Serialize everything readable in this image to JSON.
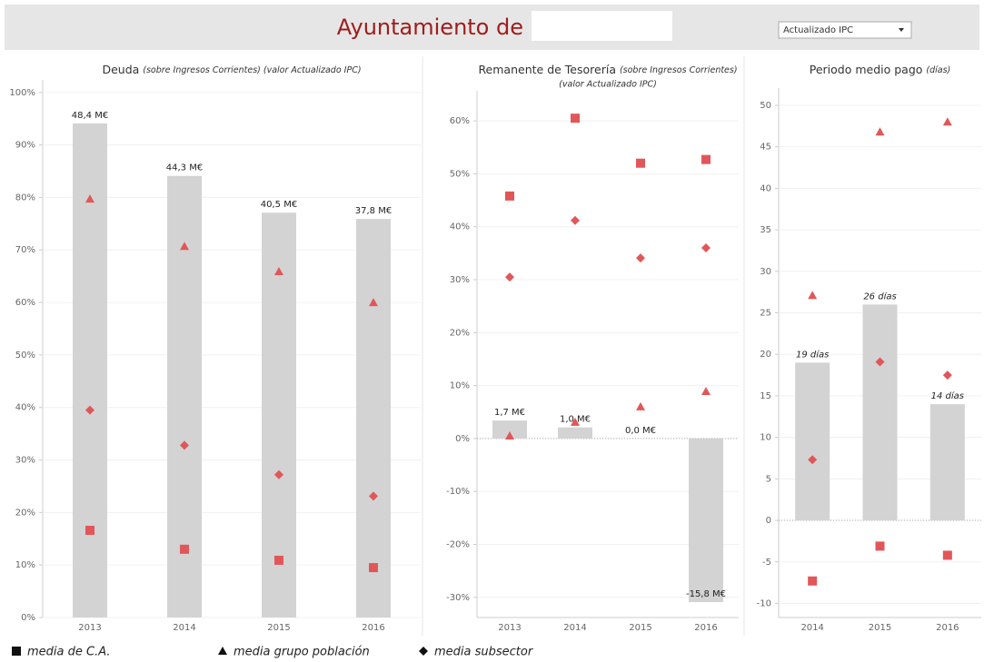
{
  "header": {
    "title": "Ayuntamiento de",
    "dropdown": "Actualizado IPC"
  },
  "legend": [
    {
      "name": "media de C.A.",
      "marker": "square"
    },
    {
      "name": "media grupo población",
      "marker": "triangle"
    },
    {
      "name": "media subsector",
      "marker": "diamond"
    }
  ],
  "chart_data": [
    {
      "type": "bar",
      "title": "Deuda",
      "subtitle": "(sobre Ingresos Corrientes) (valor Actualizado IPC)",
      "categories": [
        "2013",
        "2014",
        "2015",
        "2016"
      ],
      "values": [
        94.1,
        84.1,
        77.1,
        75.9
      ],
      "annotations": [
        "48,4 M€",
        "44,3 M€",
        "40,5 M€",
        "37,8 M€"
      ],
      "bar_color": "#d3d3d3",
      "series": [
        {
          "marker": "square",
          "color": "#e15759",
          "values": [
            16.6,
            13.0,
            10.9,
            9.5
          ]
        },
        {
          "marker": "triangle",
          "color": "#e15759",
          "values": [
            79.7,
            70.7,
            65.9,
            60.0
          ]
        },
        {
          "marker": "diamond",
          "color": "#e15759",
          "values": [
            39.5,
            32.8,
            27.2,
            23.1
          ]
        }
      ],
      "ylim": [
        0,
        101
      ],
      "yticks": [
        {
          "value": 0,
          "label": "0%"
        },
        {
          "value": 10,
          "label": "10%"
        },
        {
          "value": 20,
          "label": "20%"
        },
        {
          "value": 30,
          "label": "30%"
        },
        {
          "value": 40,
          "label": "40%"
        },
        {
          "value": 50,
          "label": "50%"
        },
        {
          "value": 60,
          "label": "60%"
        },
        {
          "value": 70,
          "label": "70%"
        },
        {
          "value": 80,
          "label": "80%"
        },
        {
          "value": 90,
          "label": "90%"
        },
        {
          "value": 100,
          "label": "100%"
        }
      ],
      "grid": true
    },
    {
      "type": "bar",
      "title": "Remanente de Tesorería",
      "subtitle": [
        "(sobre Ingresos Corrientes)",
        "(valor Actualizado IPC)"
      ],
      "categories": [
        "2013",
        "2014",
        "2015",
        "2016"
      ],
      "values": [
        3.4,
        2.1,
        0,
        -30.9
      ],
      "annotations": [
        "1,7 M€",
        "1,0 M€",
        "0,0 M€",
        "-15,8 M€"
      ],
      "bar_color": "#d3d3d3",
      "series": [
        {
          "marker": "square",
          "color": "#e15759",
          "values": [
            45.8,
            60.5,
            52.0,
            52.7
          ]
        },
        {
          "marker": "triangle",
          "color": "#e15759",
          "values": [
            0.5,
            3.1,
            6.0,
            8.9
          ]
        },
        {
          "marker": "diamond",
          "color": "#e15759",
          "values": [
            30.5,
            41.2,
            34.1,
            36.0
          ]
        }
      ],
      "ylim": [
        -33.8,
        64.3
      ],
      "yticks": [
        {
          "value": -30,
          "label": "-30%"
        },
        {
          "value": -20,
          "label": "-20%"
        },
        {
          "value": -10,
          "label": "-10%"
        },
        {
          "value": 0,
          "label": "0%"
        },
        {
          "value": 10,
          "label": "10%"
        },
        {
          "value": 20,
          "label": "20%"
        },
        {
          "value": 30,
          "label": "30%"
        },
        {
          "value": 40,
          "label": "40%"
        },
        {
          "value": 50,
          "label": "50%"
        },
        {
          "value": 60,
          "label": "60%"
        }
      ],
      "grid": true
    },
    {
      "type": "bar",
      "title": "Periodo medio pago",
      "subtitle": "(días)",
      "categories": [
        "2014",
        "2015",
        "2016"
      ],
      "values": [
        19,
        26,
        14
      ],
      "value_labels": [
        "19 días",
        "26 días",
        "14 días"
      ],
      "bar_color": "#d3d3d3",
      "series": [
        {
          "marker": "square",
          "color": "#e15759",
          "values": [
            -7.3,
            -3.1,
            -4.2
          ]
        },
        {
          "marker": "triangle",
          "color": "#e15759",
          "values": [
            27.1,
            46.8,
            48.0
          ]
        },
        {
          "marker": "diamond",
          "color": "#e15759",
          "values": [
            7.3,
            19.1,
            17.5
          ]
        }
      ],
      "ylim": [
        -11.7,
        51.2
      ],
      "yticks": [
        -10,
        -5,
        0,
        5,
        10,
        15,
        20,
        25,
        30,
        35,
        40,
        45,
        50
      ],
      "grid": true
    }
  ]
}
